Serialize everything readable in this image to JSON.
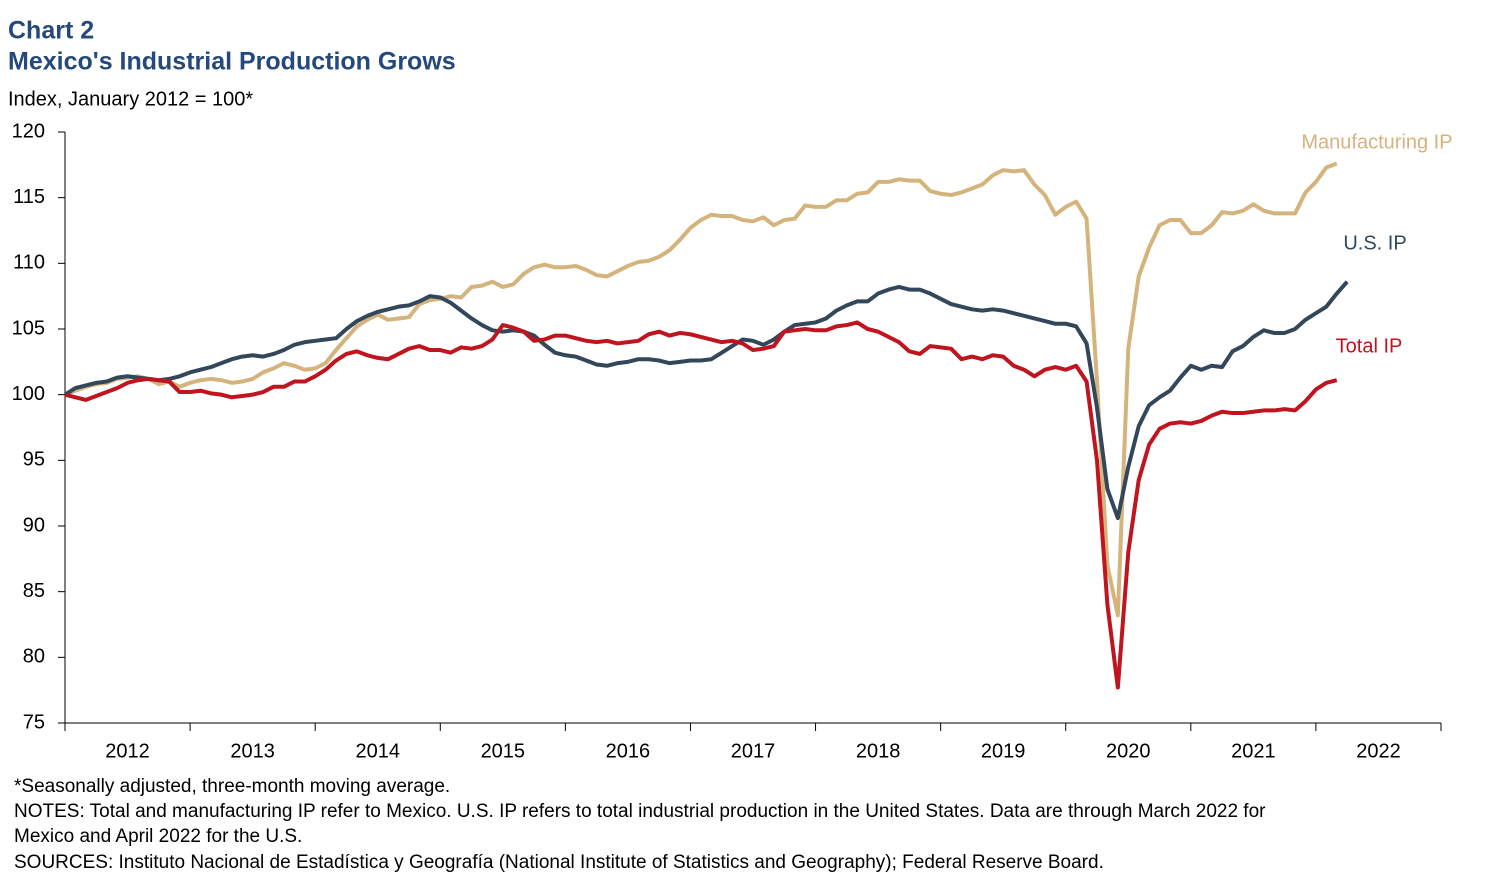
{
  "chart_data": {
    "type": "line",
    "title": "Chart 2",
    "subtitle": "Mexico's Industrial Production Grows",
    "y_label": "Index, January 2012 = 100*",
    "notes": [
      "*Seasonally adjusted, three-month moving average.",
      "NOTES: Total and manufacturing IP refer to Mexico. U.S. IP refers to total industrial production in the United States. Data are through March 2022 for Mexico and April 2022 for the U.S.",
      "SOURCES: Instituto Nacional de Estadística y Geografía (National Institute of Statistics and Geography); Federal Reserve Board."
    ],
    "categories": [
      null,
      null,
      null,
      null,
      null,
      null,
      "2012",
      null,
      null,
      null,
      null,
      null,
      null,
      null,
      null,
      null,
      null,
      null,
      "2013",
      null,
      null,
      null,
      null,
      null,
      null,
      null,
      null,
      null,
      null,
      null,
      "2014",
      null,
      null,
      null,
      null,
      null,
      null,
      null,
      null,
      null,
      null,
      null,
      "2015",
      null,
      null,
      null,
      null,
      null,
      null,
      null,
      null,
      null,
      null,
      null,
      "2016",
      null,
      null,
      null,
      null,
      null,
      null,
      null,
      null,
      null,
      null,
      null,
      "2017",
      null,
      null,
      null,
      null,
      null,
      null,
      null,
      null,
      null,
      null,
      null,
      "2018",
      null,
      null,
      null,
      null,
      null,
      null,
      null,
      null,
      null,
      null,
      null,
      "2019",
      null,
      null,
      null,
      null,
      null,
      null,
      null,
      null,
      null,
      null,
      null,
      "2020",
      null,
      null,
      null,
      null,
      null,
      null,
      null,
      null,
      null,
      null,
      null,
      "2021",
      null,
      null,
      null,
      null,
      null,
      null,
      null,
      null,
      null,
      null,
      null,
      "2022",
      null,
      null,
      null,
      null,
      null
    ],
    "ylim": [
      75,
      120
    ],
    "yticks": [
      75,
      80,
      85,
      90,
      95,
      100,
      105,
      110,
      115,
      120
    ],
    "series": [
      {
        "name": "Manufacturing IP",
        "color": "#d4b47c",
        "values": [
          100,
          100.3,
          100.6,
          100.8,
          100.9,
          101.2,
          101.3,
          101.4,
          101.2,
          100.8,
          101.0,
          100.6,
          100.9,
          101.1,
          101.2,
          101.1,
          100.9,
          101.0,
          101.2,
          101.7,
          102.0,
          102.4,
          102.2,
          101.9,
          102.0,
          102.4,
          103.4,
          104.3,
          105.2,
          105.7,
          106.1,
          105.7,
          105.8,
          105.9,
          106.9,
          107.2,
          107.3,
          107.5,
          107.4,
          108.2,
          108.3,
          108.6,
          108.2,
          108.4,
          109.2,
          109.7,
          109.9,
          109.7,
          109.7,
          109.8,
          109.5,
          109.1,
          109.0,
          109.4,
          109.8,
          110.1,
          110.2,
          110.5,
          111.0,
          111.8,
          112.7,
          113.3,
          113.7,
          113.6,
          113.6,
          113.3,
          113.2,
          113.5,
          112.9,
          113.3,
          113.4,
          114.4,
          114.3,
          114.3,
          114.8,
          114.8,
          115.3,
          115.4,
          116.2,
          116.2,
          116.4,
          116.3,
          116.3,
          115.5,
          115.3,
          115.2,
          115.4,
          115.7,
          116.0,
          116.7,
          117.1,
          117.0,
          117.1,
          116.0,
          115.2,
          113.7,
          114.3,
          114.7,
          113.4,
          101,
          87,
          83.2,
          103.5,
          109,
          111.2,
          112.9,
          113.3,
          113.3,
          112.3,
          112.3,
          112.9,
          113.9,
          113.8,
          114.0,
          114.5,
          114.0,
          113.8,
          113.8,
          113.8,
          115.4,
          116.2,
          117.3,
          117.6,
          null,
          null,
          null,
          null,
          null,
          null,
          null,
          null,
          null
        ]
      },
      {
        "name": "U.S. IP",
        "color": "#33475b",
        "values": [
          100,
          100.5,
          100.7,
          100.9,
          101.0,
          101.3,
          101.4,
          101.3,
          101.2,
          101.1,
          101.2,
          101.4,
          101.7,
          101.9,
          102.1,
          102.4,
          102.7,
          102.9,
          103.0,
          102.9,
          103.1,
          103.4,
          103.8,
          104.0,
          104.1,
          104.2,
          104.3,
          105.0,
          105.6,
          106.0,
          106.3,
          106.5,
          106.7,
          106.8,
          107.1,
          107.5,
          107.4,
          107.0,
          106.4,
          105.8,
          105.3,
          104.9,
          104.8,
          104.9,
          104.8,
          104.5,
          103.8,
          103.2,
          103.0,
          102.9,
          102.6,
          102.3,
          102.2,
          102.4,
          102.5,
          102.7,
          102.7,
          102.6,
          102.4,
          102.5,
          102.6,
          102.6,
          102.7,
          103.2,
          103.7,
          104.2,
          104.1,
          103.8,
          104.2,
          104.8,
          105.3,
          105.4,
          105.5,
          105.8,
          106.4,
          106.8,
          107.1,
          107.1,
          107.7,
          108.0,
          108.2,
          108.0,
          108.0,
          107.7,
          107.3,
          106.9,
          106.7,
          106.5,
          106.4,
          106.5,
          106.4,
          106.2,
          106.0,
          105.8,
          105.6,
          105.4,
          105.4,
          105.2,
          103.9,
          99,
          92.8,
          90.6,
          94.5,
          97.6,
          99.2,
          99.8,
          100.3,
          101.3,
          102.2,
          101.9,
          102.2,
          102.1,
          103.3,
          103.7,
          104.4,
          104.9,
          104.7,
          104.7,
          105.0,
          105.7,
          106.2,
          106.7,
          107.7,
          108.6,
          null,
          null,
          null,
          null,
          null,
          null,
          null,
          null
        ]
      },
      {
        "name": "Total IP",
        "color": "#c0141f",
        "values": [
          100,
          99.8,
          99.6,
          99.9,
          100.2,
          100.5,
          100.9,
          101.1,
          101.2,
          101.1,
          101.0,
          100.2,
          100.2,
          100.3,
          100.1,
          100.0,
          99.8,
          99.9,
          100.0,
          100.2,
          100.6,
          100.6,
          101.0,
          101.0,
          101.4,
          101.9,
          102.6,
          103.1,
          103.3,
          103.0,
          102.8,
          102.7,
          103.1,
          103.5,
          103.7,
          103.4,
          103.4,
          103.2,
          103.6,
          103.5,
          103.7,
          104.2,
          105.3,
          105.1,
          104.8,
          104.1,
          104.2,
          104.5,
          104.5,
          104.3,
          104.1,
          104.0,
          104.1,
          103.9,
          104.0,
          104.1,
          104.6,
          104.8,
          104.5,
          104.7,
          104.6,
          104.4,
          104.2,
          104.0,
          104.1,
          103.9,
          103.4,
          103.5,
          103.7,
          104.8,
          104.9,
          105.0,
          104.9,
          104.9,
          105.2,
          105.3,
          105.5,
          105.0,
          104.8,
          104.4,
          104.0,
          103.3,
          103.1,
          103.7,
          103.6,
          103.5,
          102.7,
          102.9,
          102.7,
          103.0,
          102.9,
          102.2,
          101.9,
          101.4,
          101.9,
          102.1,
          101.9,
          102.2,
          101.0,
          95,
          84,
          77.7,
          88,
          93.5,
          96.2,
          97.4,
          97.8,
          97.9,
          97.8,
          98.0,
          98.4,
          98.7,
          98.6,
          98.6,
          98.7,
          98.8,
          98.8,
          98.9,
          98.8,
          99.5,
          100.4,
          100.9,
          101.1,
          null,
          null,
          null,
          null,
          null,
          null,
          null,
          null,
          null
        ]
      }
    ]
  }
}
